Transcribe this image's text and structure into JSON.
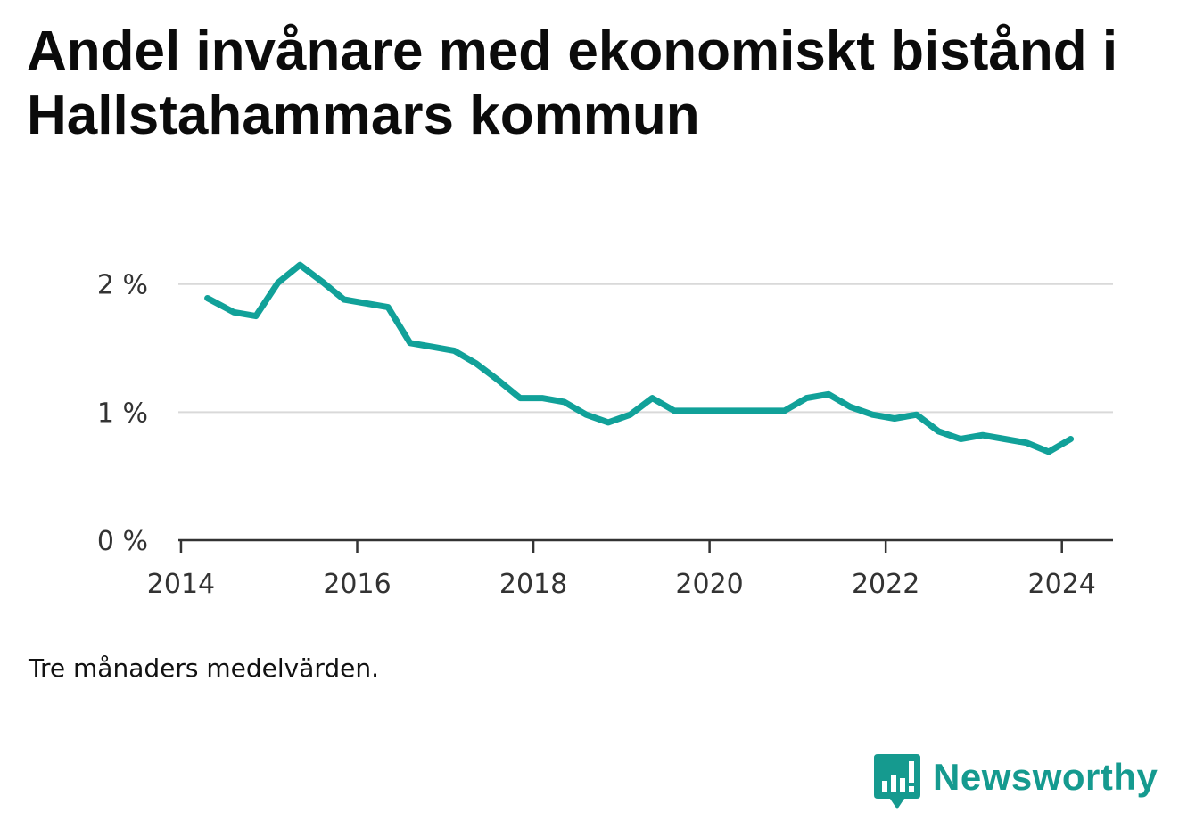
{
  "title": "Andel invånare med ekonomiskt bistånd i Hallstahammars kommun",
  "note": "Tre månaders medelvärden.",
  "brand": {
    "name": "Newsworthy",
    "icon": "newsworthy-logo-icon",
    "color": "#159a8f"
  },
  "colors": {
    "line": "#11a199",
    "grid": "#d9d9d9",
    "axis": "#333333"
  },
  "chart_data": {
    "type": "line",
    "title": "Andel invånare med ekonomiskt bistånd i Hallstahammars kommun",
    "xlabel": "",
    "ylabel": "",
    "xlim": [
      2013.97,
      2024.58
    ],
    "ylim": [
      0,
      2.2
    ],
    "x_ticks": [
      {
        "value": 2014,
        "label": "2014"
      },
      {
        "value": 2016,
        "label": "2016"
      },
      {
        "value": 2018,
        "label": "2018"
      },
      {
        "value": 2020,
        "label": "2020"
      },
      {
        "value": 2022,
        "label": "2022"
      },
      {
        "value": 2024,
        "label": "2024"
      }
    ],
    "y_ticks": [
      {
        "value": 0,
        "label": "0 %"
      },
      {
        "value": 1,
        "label": "1 %"
      },
      {
        "value": 2,
        "label": "2 %"
      }
    ],
    "grid": true,
    "legend": "none",
    "series": [
      {
        "x": [
          2014.3,
          2014.6,
          2014.85,
          2015.1,
          2015.35,
          2015.6,
          2015.85,
          2016.1,
          2016.35,
          2016.6,
          2016.85,
          2017.1,
          2017.35,
          2017.6,
          2017.85,
          2018.1,
          2018.35,
          2018.6,
          2018.85,
          2019.1,
          2019.35,
          2019.6,
          2019.85,
          2020.1,
          2020.35,
          2020.6,
          2020.85,
          2021.1,
          2021.35,
          2021.6,
          2021.85,
          2022.1,
          2022.35,
          2022.6,
          2022.85,
          2023.1,
          2023.35,
          2023.6,
          2023.85,
          2024.1
        ],
        "values": [
          1.89,
          1.78,
          1.75,
          2.01,
          2.15,
          2.02,
          1.88,
          1.85,
          1.82,
          1.54,
          1.51,
          1.48,
          1.38,
          1.25,
          1.11,
          1.11,
          1.08,
          0.98,
          0.92,
          0.98,
          1.11,
          1.01,
          1.01,
          1.01,
          1.01,
          1.01,
          1.01,
          1.11,
          1.14,
          1.04,
          0.98,
          0.95,
          0.98,
          0.85,
          0.79,
          0.82,
          0.79,
          0.76,
          0.69,
          0.79
        ]
      }
    ]
  }
}
